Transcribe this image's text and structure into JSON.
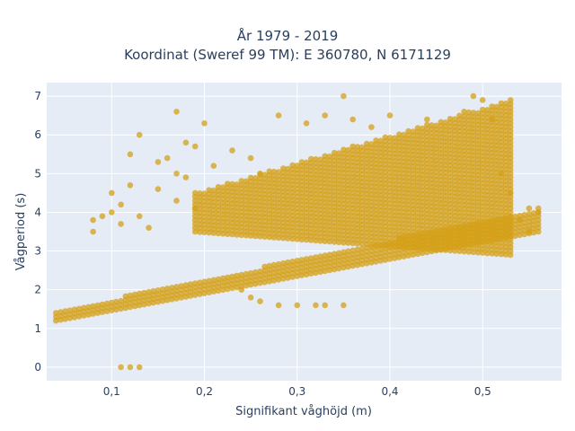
{
  "chart_data": {
    "type": "scatter",
    "title_line1": "År 1979 - 2019",
    "title_line2": "Koordinat (Sweref 99 TM): E 360780, N 6171129",
    "xlabel": "Signifikant våghöjd (m)",
    "ylabel": "Vågperiod (s)",
    "xlim": [
      0.03,
      0.585
    ],
    "ylim": [
      -0.35,
      7.35
    ],
    "x_ticks": [
      {
        "v": 0.1,
        "label": "0,1"
      },
      {
        "v": 0.2,
        "label": "0,2"
      },
      {
        "v": 0.3,
        "label": "0,3"
      },
      {
        "v": 0.4,
        "label": "0,4"
      },
      {
        "v": 0.5,
        "label": "0,5"
      }
    ],
    "y_ticks": [
      {
        "v": 0,
        "label": "0"
      },
      {
        "v": 1,
        "label": "1"
      },
      {
        "v": 2,
        "label": "2"
      },
      {
        "v": 3,
        "label": "3"
      },
      {
        "v": 4,
        "label": "4"
      },
      {
        "v": 5,
        "label": "5"
      },
      {
        "v": 6,
        "label": "6"
      },
      {
        "v": 7,
        "label": "7"
      }
    ],
    "grid": true,
    "marker_color": "#d4a017",
    "plot_background": "#e5ecf6",
    "lower_band": {
      "x_start": 0.04,
      "x_end": 0.56,
      "x_step": 0.005,
      "y_min_start": 1.2,
      "y_min_end": 3.5,
      "y_max_start": 1.45,
      "y_max_end": 4.1
    },
    "upper_band": {
      "x_start": 0.19,
      "x_end": 0.53,
      "x_step": 0.005,
      "y_min_start": 3.5,
      "y_min_end": 2.9,
      "y_max_start": 4.5,
      "y_max_end": 6.9
    },
    "scattered_points": [
      [
        0.12,
        0.0
      ],
      [
        0.13,
        0.0
      ],
      [
        0.11,
        0.0
      ],
      [
        0.08,
        3.5
      ],
      [
        0.08,
        3.8
      ],
      [
        0.09,
        3.9
      ],
      [
        0.1,
        4.5
      ],
      [
        0.1,
        4.0
      ],
      [
        0.11,
        4.2
      ],
      [
        0.11,
        3.7
      ],
      [
        0.12,
        4.7
      ],
      [
        0.12,
        5.5
      ],
      [
        0.13,
        6.0
      ],
      [
        0.13,
        3.9
      ],
      [
        0.14,
        3.6
      ],
      [
        0.15,
        4.6
      ],
      [
        0.15,
        5.3
      ],
      [
        0.16,
        5.4
      ],
      [
        0.17,
        4.3
      ],
      [
        0.17,
        5.0
      ],
      [
        0.17,
        6.6
      ],
      [
        0.18,
        5.8
      ],
      [
        0.18,
        4.9
      ],
      [
        0.19,
        4.1
      ],
      [
        0.19,
        5.7
      ],
      [
        0.2,
        6.3
      ],
      [
        0.21,
        5.2
      ],
      [
        0.23,
        5.6
      ],
      [
        0.25,
        5.4
      ],
      [
        0.26,
        5.0
      ],
      [
        0.28,
        6.5
      ],
      [
        0.31,
        6.3
      ],
      [
        0.33,
        6.5
      ],
      [
        0.35,
        7.0
      ],
      [
        0.36,
        6.4
      ],
      [
        0.38,
        6.2
      ],
      [
        0.4,
        6.5
      ],
      [
        0.44,
        6.4
      ],
      [
        0.48,
        6.6
      ],
      [
        0.49,
        7.0
      ],
      [
        0.5,
        6.9
      ],
      [
        0.51,
        6.4
      ],
      [
        0.24,
        2.0
      ],
      [
        0.25,
        1.8
      ],
      [
        0.26,
        1.7
      ],
      [
        0.28,
        1.6
      ],
      [
        0.3,
        1.6
      ],
      [
        0.32,
        1.6
      ],
      [
        0.33,
        1.6
      ],
      [
        0.35,
        1.6
      ],
      [
        0.55,
        4.1
      ],
      [
        0.56,
        4.0
      ],
      [
        0.55,
        3.5
      ],
      [
        0.54,
        3.8
      ],
      [
        0.53,
        4.5
      ],
      [
        0.52,
        5.0
      ]
    ]
  }
}
